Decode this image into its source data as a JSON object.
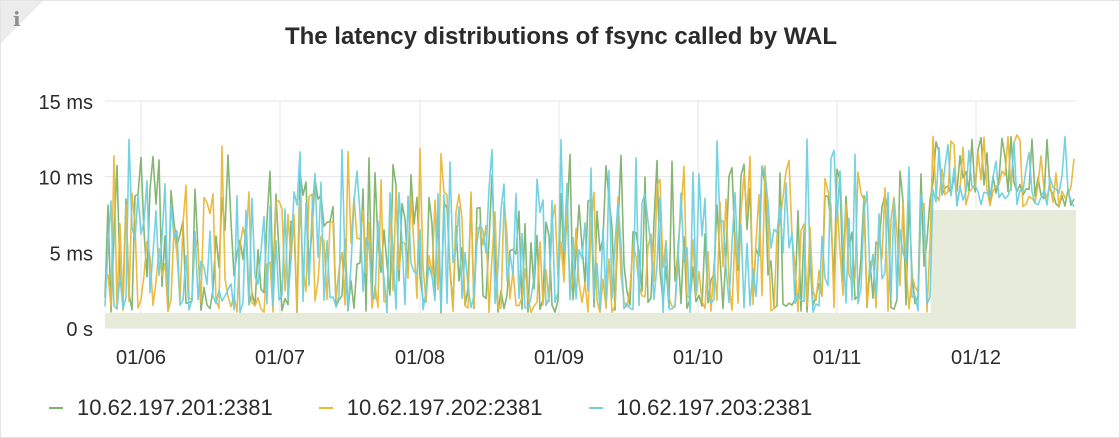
{
  "panel": {
    "info_icon": "i",
    "title": "The latency distributions of fsync called by WAL"
  },
  "colors": {
    "series1": "#7eb26d",
    "series2": "#eab839",
    "series3": "#6ed0e0",
    "fill": "#e6ecd9",
    "grid": "#e5e5e5"
  },
  "chart_data": {
    "type": "line",
    "title": "The latency distributions of fsync called by WAL",
    "xlabel": "",
    "ylabel": "",
    "x_ticks": [
      "01/06",
      "01/07",
      "01/08",
      "01/09",
      "01/10",
      "01/11",
      "01/12"
    ],
    "y_ticks": [
      "0 s",
      "5 ms",
      "10 ms",
      "15 ms"
    ],
    "ylim": [
      0,
      15
    ],
    "unit": "ms",
    "x_range_days": [
      "01/05",
      "01/12"
    ],
    "grid": true,
    "legend_position": "bottom-left",
    "series": [
      {
        "name": "10.62.197.201:2381",
        "color": "#7eb26d",
        "stats_approx": {
          "min": 1,
          "max": 13,
          "baseline_after_01/11": 8
        }
      },
      {
        "name": "10.62.197.202:2381",
        "color": "#eab839",
        "stats_approx": {
          "min": 1,
          "max": 13.2,
          "baseline_after_01/11": 8
        }
      },
      {
        "name": "10.62.197.203:2381",
        "color": "#6ed0e0",
        "stats_approx": {
          "min": 1,
          "max": 12.8,
          "baseline_after_01/11": 8
        }
      }
    ],
    "area_floor_ms": {
      "before_01/11_late": 1,
      "after_01/11_late": 7.8
    }
  }
}
